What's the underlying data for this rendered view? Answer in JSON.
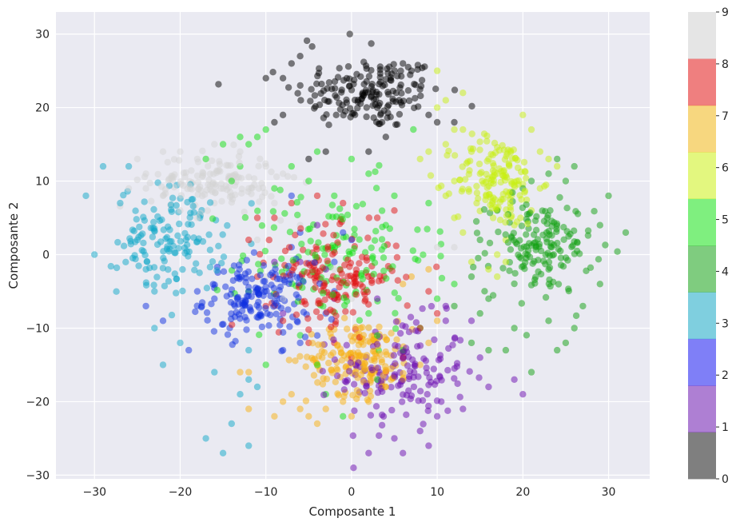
{
  "chart_data": {
    "type": "scatter",
    "xlabel": "Composante 1",
    "ylabel": "Composante 2",
    "xlim": [
      -34.5,
      34.8
    ],
    "ylim": [
      -30.5,
      33.0
    ],
    "xticks": [
      -30,
      -20,
      -10,
      0,
      10,
      20,
      30
    ],
    "yticks": [
      -30,
      -20,
      -10,
      0,
      10,
      20,
      30
    ],
    "grid": true,
    "background": "#eaeaf2",
    "point_alpha": 0.5,
    "colorbar": {
      "ticks": [
        0,
        1,
        2,
        3,
        4,
        5,
        6,
        7,
        8,
        9
      ],
      "range": [
        0,
        9
      ],
      "colors": [
        "#000000",
        "#5e00a8",
        "#0000f0",
        "#00a0c0",
        "#009a00",
        "#00e000",
        "#c8f000",
        "#f0b000",
        "#e00000",
        "#cccccc"
      ]
    },
    "series": [
      {
        "label": "0",
        "color": "#000000",
        "cluster": {
          "center": [
            2,
            22
          ],
          "spread": [
            7,
            4
          ],
          "n": 170
        },
        "points": [
          [
            -0.2,
            30.0
          ],
          [
            -5.2,
            29.1
          ],
          [
            2.3,
            28.7
          ],
          [
            -4.6,
            28.3
          ],
          [
            -7,
            26
          ],
          [
            -6,
            27
          ],
          [
            6,
            26
          ],
          [
            7,
            25
          ],
          [
            -8,
            24
          ],
          [
            -10,
            24
          ],
          [
            -8,
            19
          ],
          [
            -9,
            18
          ],
          [
            -3,
            14
          ],
          [
            2,
            14
          ],
          [
            -5,
            13
          ],
          [
            4,
            16
          ],
          [
            9,
            19
          ],
          [
            10,
            18
          ],
          [
            12,
            18
          ]
        ]
      },
      {
        "label": "1",
        "color": "#6a0ab0",
        "cluster": {
          "center": [
            6,
            -16
          ],
          "spread": [
            6,
            6
          ],
          "n": 150
        },
        "points": [
          [
            2,
            -27
          ],
          [
            6,
            -27
          ],
          [
            9,
            -26
          ],
          [
            5,
            -25
          ],
          [
            8,
            -24
          ],
          [
            10,
            -22
          ],
          [
            13,
            -21
          ],
          [
            16,
            -18
          ],
          [
            19,
            -17
          ],
          [
            20,
            -19
          ],
          [
            15,
            -14
          ],
          [
            14,
            -9
          ],
          [
            11,
            -9
          ],
          [
            11,
            -7
          ],
          [
            3,
            -6
          ],
          [
            -2,
            -6
          ],
          [
            -3,
            -2
          ],
          [
            -6,
            -1
          ],
          [
            -4,
            4
          ],
          [
            -9,
            -1
          ],
          [
            -8,
            -8
          ]
        ]
      },
      {
        "label": "2",
        "color": "#1030e0",
        "cluster": {
          "center": [
            -11,
            -6
          ],
          "spread": [
            5,
            4
          ],
          "n": 160
        },
        "points": [
          [
            -19,
            -13
          ],
          [
            -22,
            -9
          ],
          [
            -24,
            -7
          ],
          [
            -18,
            -5
          ],
          [
            -16,
            -6
          ],
          [
            -6,
            -12
          ],
          [
            -4,
            -11
          ],
          [
            -3,
            -8
          ],
          [
            -2,
            -5
          ],
          [
            -2,
            -1
          ],
          [
            -1,
            3
          ],
          [
            0,
            2
          ],
          [
            -6,
            3
          ],
          [
            -7,
            1
          ],
          [
            -7,
            8
          ],
          [
            -8,
            -13
          ]
        ]
      },
      {
        "label": "3",
        "color": "#10a8c8",
        "cluster": {
          "center": [
            -21,
            2
          ],
          "spread": [
            5,
            6
          ],
          "n": 140
        },
        "points": [
          [
            -31,
            8
          ],
          [
            -30,
            0
          ],
          [
            -27,
            7
          ],
          [
            -25,
            2
          ],
          [
            -24,
            -2
          ],
          [
            -23,
            -5
          ],
          [
            -23,
            -10
          ],
          [
            -22,
            -15
          ],
          [
            -20,
            -12
          ],
          [
            -16,
            -16
          ],
          [
            -17,
            -25
          ],
          [
            -15,
            -27
          ],
          [
            -12,
            -26
          ],
          [
            -14,
            -23
          ],
          [
            -12,
            -17
          ],
          [
            -11,
            -18
          ],
          [
            -13,
            -19
          ],
          [
            -12,
            -13
          ],
          [
            -29,
            12
          ],
          [
            -26,
            12
          ]
        ]
      },
      {
        "label": "4",
        "color": "#10a010",
        "cluster": {
          "center": [
            22,
            1
          ],
          "spread": [
            5,
            5
          ],
          "n": 160
        },
        "points": [
          [
            32,
            3
          ],
          [
            30,
            8
          ],
          [
            29,
            4
          ],
          [
            29,
            -4
          ],
          [
            25,
            -12
          ],
          [
            24,
            -13
          ],
          [
            21,
            -16
          ],
          [
            18,
            -13
          ],
          [
            16,
            -13
          ],
          [
            14,
            -12
          ],
          [
            15,
            -8
          ],
          [
            19,
            -10
          ],
          [
            27,
            -7
          ],
          [
            26,
            -10
          ],
          [
            23,
            -9
          ],
          [
            25,
            10
          ],
          [
            26,
            12
          ],
          [
            24,
            13
          ],
          [
            23,
            11
          ],
          [
            21,
            10
          ],
          [
            20,
            9
          ],
          [
            17,
            6
          ],
          [
            15,
            2
          ],
          [
            14,
            -3
          ],
          [
            12,
            -7
          ],
          [
            16,
            -6
          ]
        ]
      },
      {
        "label": "5",
        "color": "#10e010",
        "cluster": {
          "center": [
            -2,
            0
          ],
          "spread": [
            9,
            8
          ],
          "n": 140
        },
        "points": [
          [
            -14,
            10
          ],
          [
            -13,
            12
          ],
          [
            -12,
            15
          ],
          [
            -11,
            16
          ],
          [
            -10,
            17
          ],
          [
            -13,
            16
          ],
          [
            -15,
            15
          ],
          [
            -17,
            13
          ],
          [
            -9,
            9
          ],
          [
            -7,
            12
          ],
          [
            -5,
            10
          ],
          [
            -4,
            14
          ],
          [
            0,
            13
          ],
          [
            2,
            11
          ],
          [
            5,
            8
          ],
          [
            4,
            4
          ],
          [
            9,
            7
          ],
          [
            12,
            -4
          ],
          [
            10,
            -6
          ],
          [
            8,
            -10
          ],
          [
            6,
            -13
          ],
          [
            3,
            -17
          ],
          [
            -3,
            -19
          ],
          [
            -1,
            -22
          ],
          [
            -10,
            -15
          ],
          [
            -12,
            -5
          ],
          [
            3,
            -11
          ],
          [
            2,
            -8
          ],
          [
            -4,
            -15
          ]
        ]
      },
      {
        "label": "6",
        "color": "#c8f010",
        "cluster": {
          "center": [
            17,
            10
          ],
          "spread": [
            4,
            5
          ],
          "n": 150
        },
        "points": [
          [
            10,
            25
          ],
          [
            13,
            22
          ],
          [
            11,
            21
          ],
          [
            10,
            20
          ],
          [
            20,
            19
          ],
          [
            21,
            17
          ],
          [
            22,
            14
          ],
          [
            23,
            13
          ],
          [
            24,
            12
          ],
          [
            22,
            9
          ],
          [
            21,
            6
          ],
          [
            19,
            4
          ],
          [
            18,
            2
          ],
          [
            17,
            0
          ],
          [
            16,
            -2
          ],
          [
            17,
            -3
          ],
          [
            18,
            -1
          ],
          [
            14,
            -1
          ],
          [
            13,
            3
          ],
          [
            12,
            5
          ],
          [
            11,
            8
          ],
          [
            12,
            10
          ],
          [
            15,
            11
          ],
          [
            16,
            13
          ],
          [
            14,
            14
          ],
          [
            12,
            17
          ],
          [
            13,
            17
          ],
          [
            11,
            15
          ],
          [
            9,
            14
          ],
          [
            8,
            13
          ]
        ]
      },
      {
        "label": "7",
        "color": "#f8b010",
        "cluster": {
          "center": [
            1,
            -14
          ],
          "spread": [
            5,
            4
          ],
          "n": 170
        },
        "points": [
          [
            -9,
            -22
          ],
          [
            -8,
            -20
          ],
          [
            -7,
            -19
          ],
          [
            -6,
            -21
          ],
          [
            -5,
            -22
          ],
          [
            -4,
            -23
          ],
          [
            -3,
            -21
          ],
          [
            -1,
            -20
          ],
          [
            0,
            -22
          ],
          [
            2,
            -20
          ],
          [
            4,
            -18
          ],
          [
            6,
            -17
          ],
          [
            8,
            -15
          ],
          [
            9,
            -12
          ],
          [
            10,
            -9
          ],
          [
            6,
            -4
          ],
          [
            9,
            -2
          ],
          [
            7,
            -3
          ],
          [
            -12,
            -16
          ],
          [
            -12,
            -21
          ],
          [
            -13,
            -16
          ]
        ]
      },
      {
        "label": "8",
        "color": "#e01010",
        "cluster": {
          "center": [
            -2,
            -3
          ],
          "spread": [
            6,
            5
          ],
          "n": 160
        },
        "points": [
          [
            -11,
            5
          ],
          [
            -9,
            5
          ],
          [
            -7,
            7
          ],
          [
            -4,
            8
          ],
          [
            -1,
            7
          ],
          [
            3,
            5
          ],
          [
            5,
            6
          ],
          [
            9,
            -5
          ],
          [
            10,
            -8
          ],
          [
            8,
            -10
          ],
          [
            6,
            -14
          ],
          [
            4,
            -16
          ],
          [
            0,
            -14
          ],
          [
            -2,
            -12
          ],
          [
            -5,
            -12
          ],
          [
            -8,
            -9
          ],
          [
            -10,
            -7
          ],
          [
            -11,
            -3
          ],
          [
            -12,
            2
          ]
        ]
      },
      {
        "label": "9",
        "color": "#d4d4d4",
        "cluster": {
          "center": [
            -16,
            10
          ],
          "spread": [
            6,
            3
          ],
          "n": 140
        },
        "points": [
          [
            -25,
            13
          ],
          [
            -24,
            11
          ],
          [
            -22,
            14
          ],
          [
            -20,
            14
          ],
          [
            -18,
            13
          ],
          [
            -16,
            15
          ],
          [
            -13,
            14
          ],
          [
            -10,
            12
          ],
          [
            -8,
            11
          ],
          [
            -12,
            9
          ],
          [
            -14,
            8
          ],
          [
            -16,
            7
          ],
          [
            -18,
            5
          ],
          [
            -20,
            6
          ],
          [
            -22,
            8
          ],
          [
            -24,
            9
          ],
          [
            -26,
            9
          ],
          [
            -11,
            2
          ],
          [
            -10,
            -3
          ],
          [
            -8,
            -6
          ],
          [
            -6,
            4
          ],
          [
            -9,
            7
          ],
          [
            12,
            1
          ],
          [
            10,
            1
          ],
          [
            -2,
            -2
          ],
          [
            0,
            -6
          ],
          [
            2,
            -10
          ]
        ]
      }
    ]
  }
}
